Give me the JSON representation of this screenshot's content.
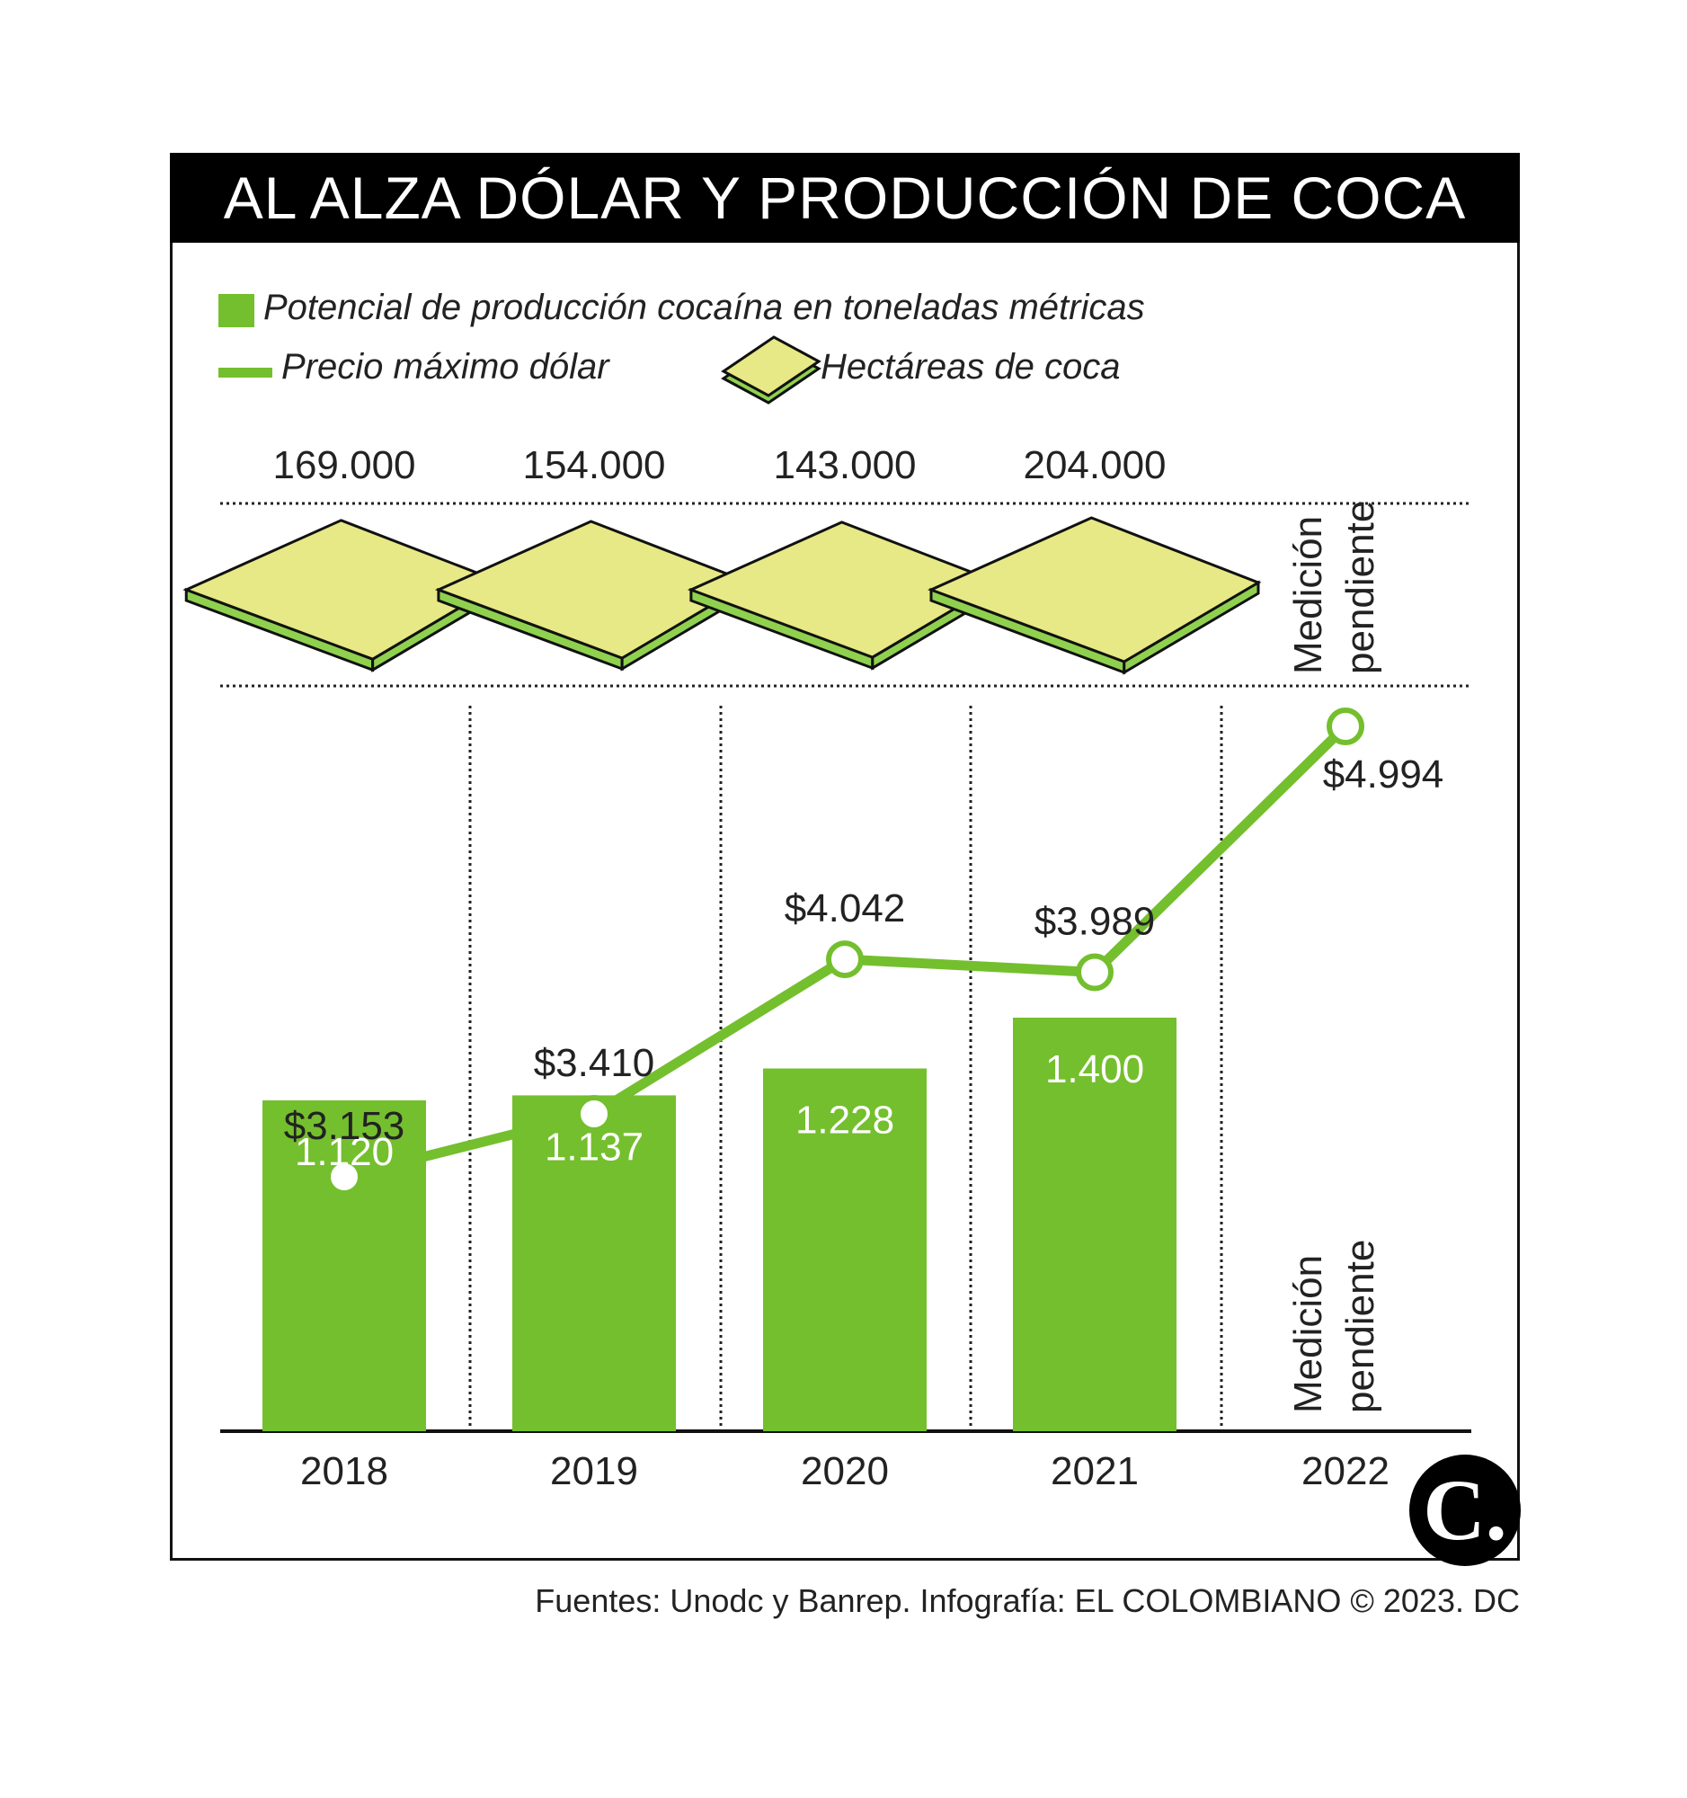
{
  "title": "AL ALZA DÓLAR Y PRODUCCIÓN DE COCA",
  "legend": {
    "bar": "Potencial de producción cocaína en toneladas métricas",
    "line": "Precio máximo dólar",
    "tile": "Hectáreas de coca"
  },
  "colors": {
    "bar": "#74bf2d",
    "line": "#74bf2d",
    "tile_top": "#e6e985",
    "tile_side": "#8fd14f",
    "title_bg": "#000000"
  },
  "pending_label": {
    "line1": "Medición",
    "line2": "pendiente"
  },
  "chart_data": {
    "type": "bar",
    "categories": [
      "2018",
      "2019",
      "2020",
      "2021",
      "2022"
    ],
    "hectares": {
      "values": [
        169000,
        154000,
        143000,
        204000,
        null
      ],
      "labels": [
        "169.000",
        "154.000",
        "143.000",
        "204.000",
        ""
      ]
    },
    "production": {
      "values": [
        1120,
        1137,
        1228,
        1400,
        null
      ],
      "labels": [
        "1.120",
        "1.137",
        "1.228",
        "1.400",
        ""
      ]
    },
    "dollar": {
      "values": [
        3153,
        3410,
        4042,
        3989,
        4994
      ],
      "labels": [
        "$3.153",
        "$3.410",
        "$4.042",
        "$3.989",
        "$4.994"
      ]
    },
    "grid": false
  },
  "source": "Fuentes: Unodc y Banrep. Infografía: EL COLOMBIANO © 2023. DC",
  "logo_text": "C."
}
